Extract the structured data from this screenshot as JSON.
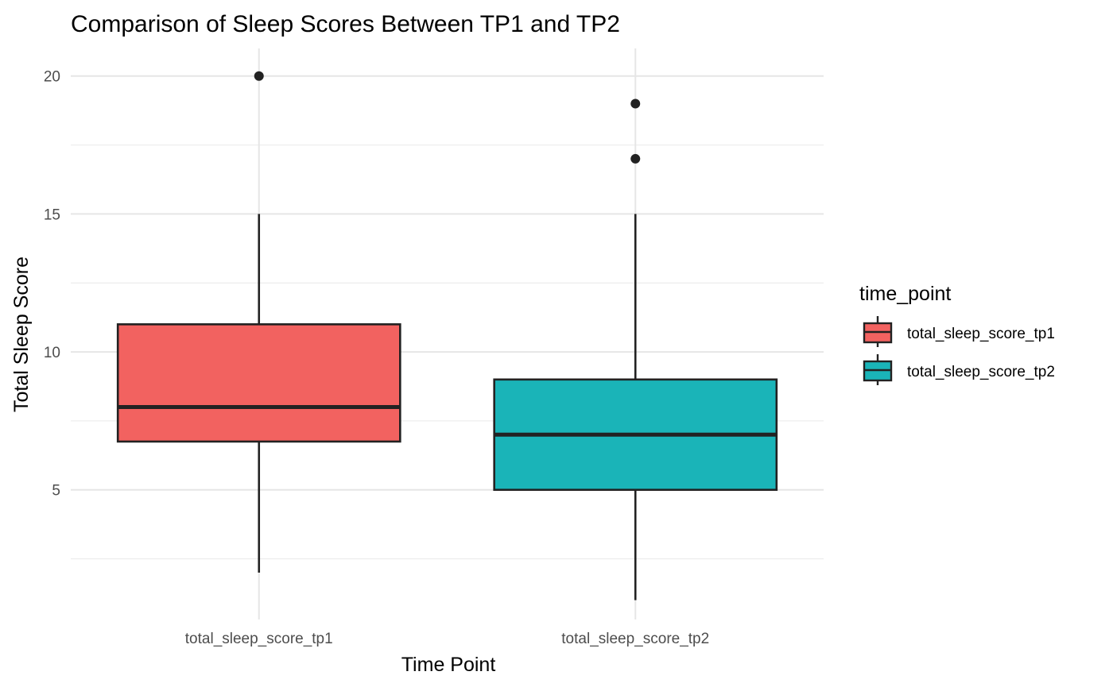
{
  "chart_data": {
    "type": "box",
    "title": "Comparison of Sleep Scores Between TP1 and TP2",
    "xlabel": "Time Point",
    "ylabel": "Total Sleep Score",
    "categories": [
      "total_sleep_score_tp1",
      "total_sleep_score_tp2"
    ],
    "ylim": [
      0.3,
      21
    ],
    "yticks": [
      5,
      10,
      15,
      20
    ],
    "grid": true,
    "legend": {
      "title": "time_point",
      "placement": "right",
      "entries": [
        "total_sleep_score_tp1",
        "total_sleep_score_tp2"
      ]
    },
    "series": [
      {
        "category": "total_sleep_score_tp1",
        "color": "#F26260",
        "min": 2,
        "q1": 6.75,
        "median": 8,
        "q3": 11,
        "max": 15,
        "outliers": [
          20
        ]
      },
      {
        "category": "total_sleep_score_tp2",
        "color": "#1AB4B8",
        "min": 1,
        "q1": 5,
        "median": 7,
        "q3": 9,
        "max": 15,
        "outliers": [
          17,
          19
        ]
      }
    ]
  }
}
